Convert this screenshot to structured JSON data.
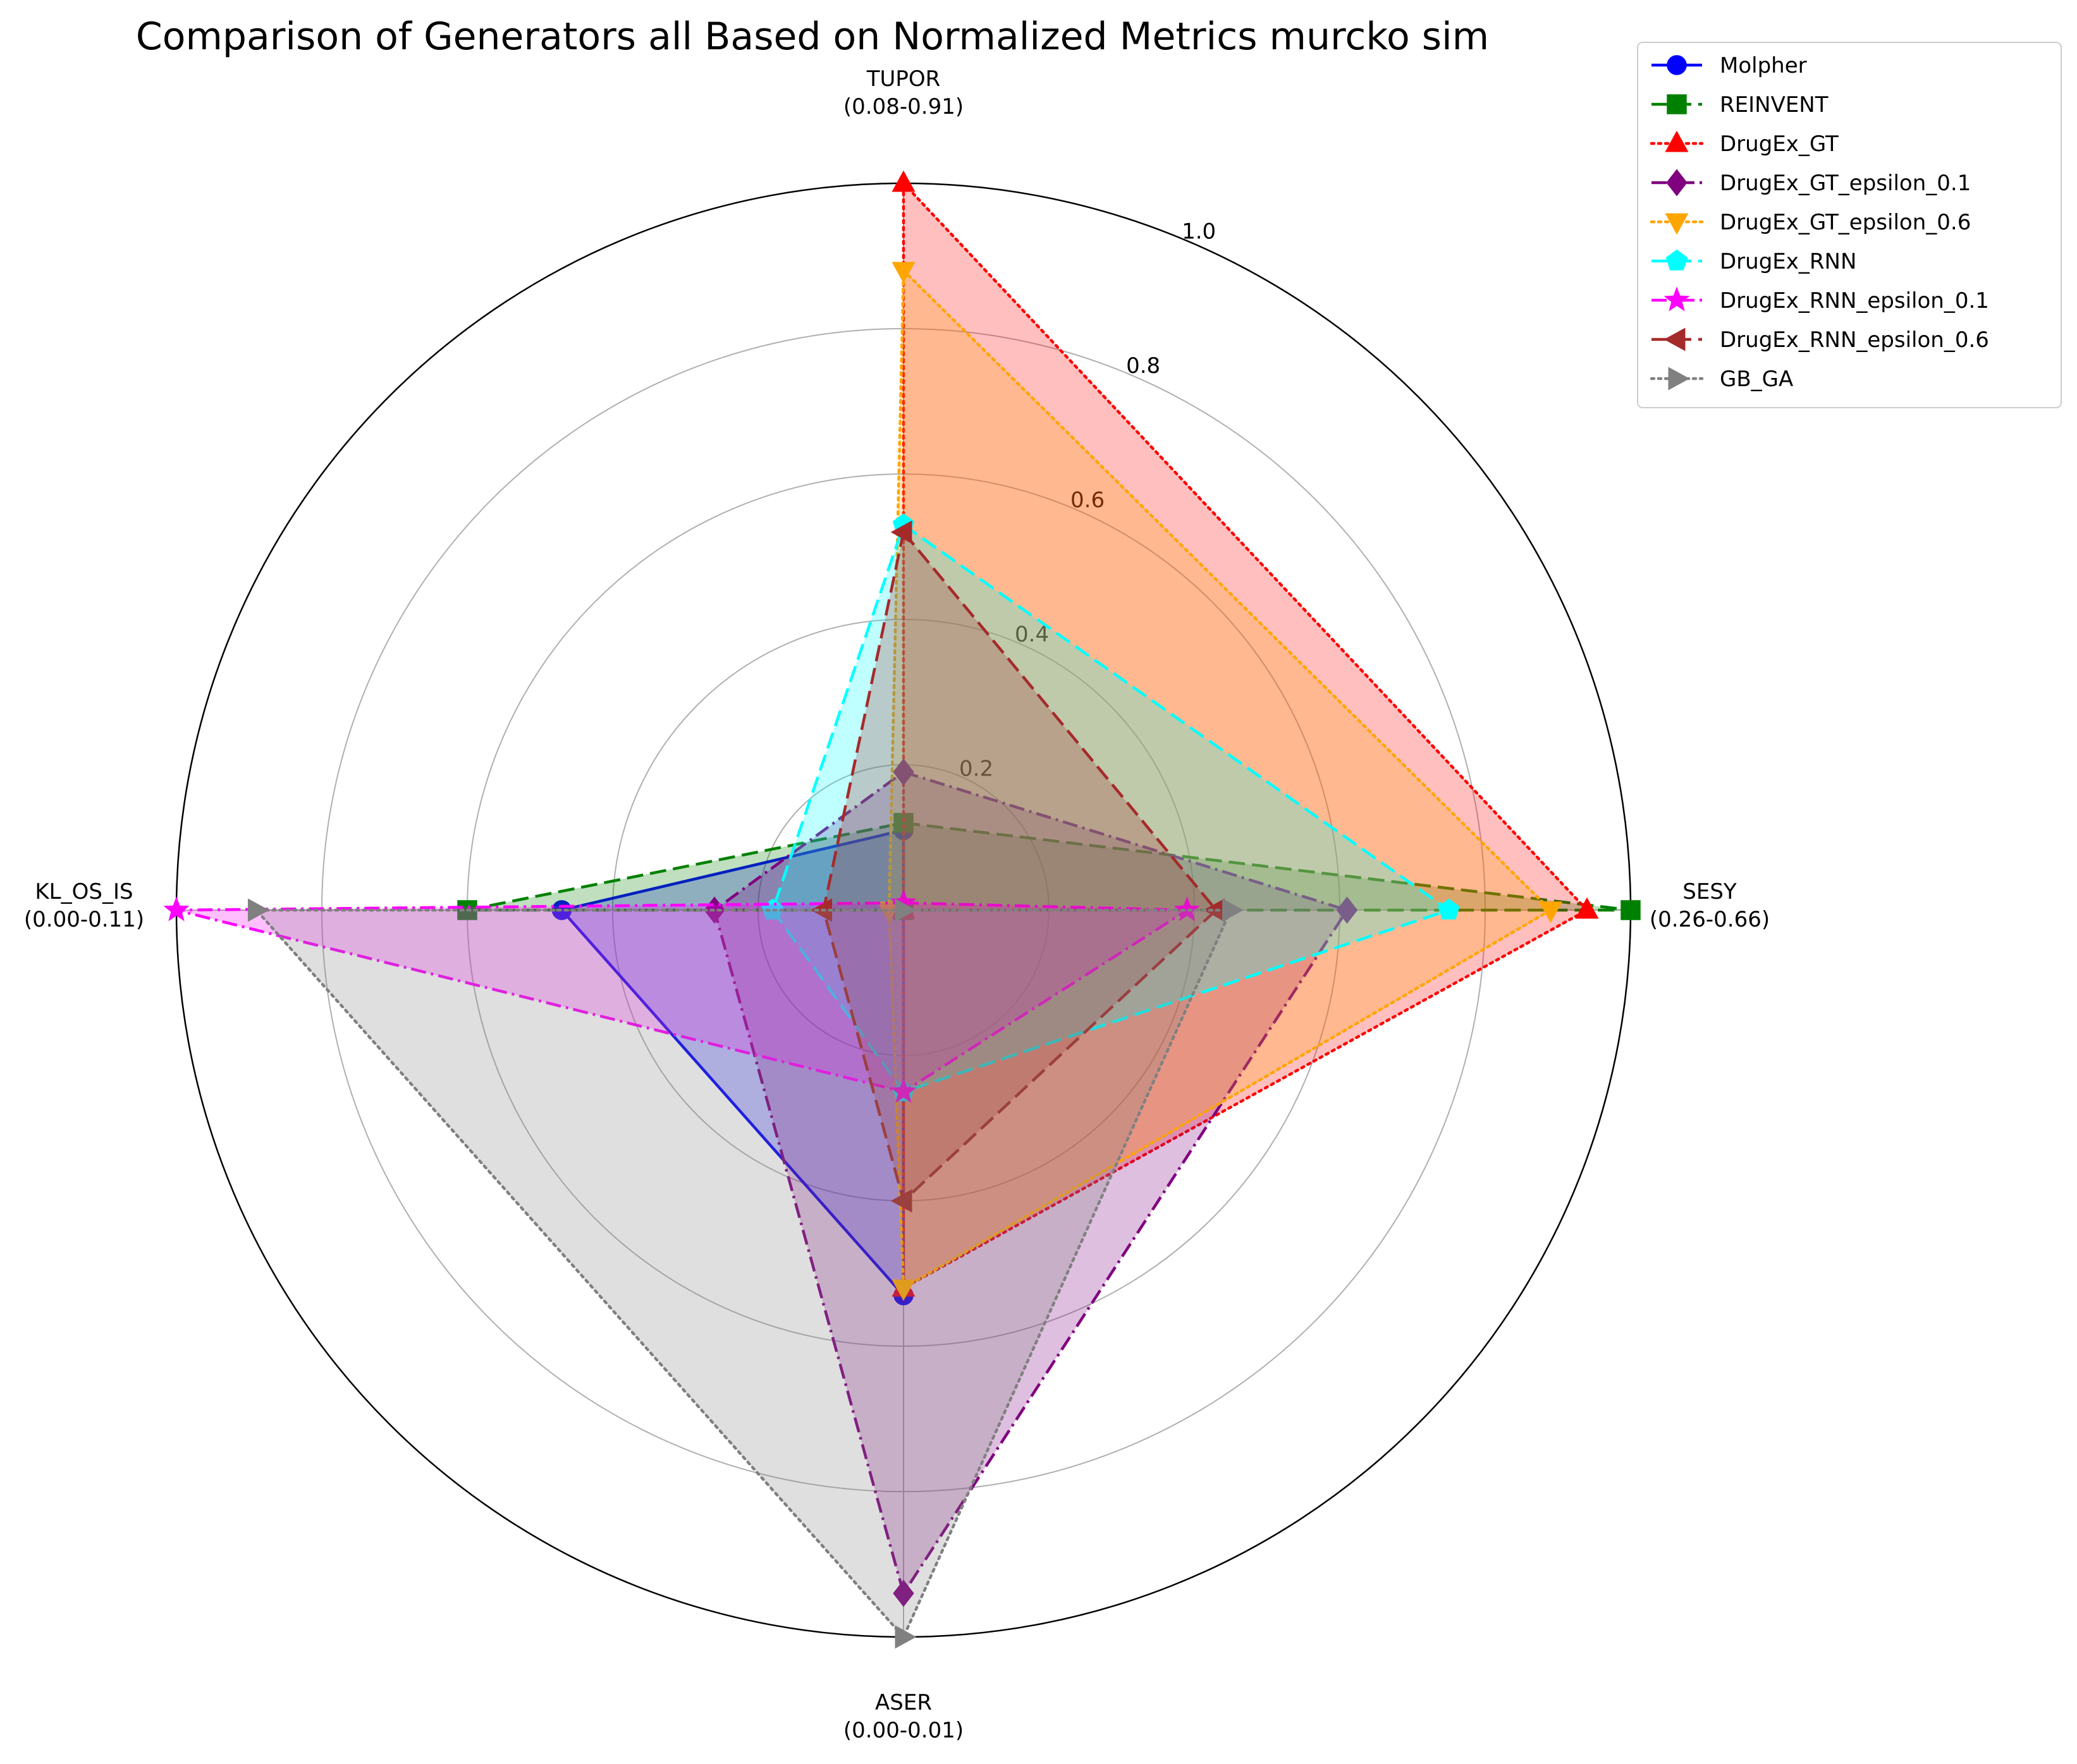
{
  "chart_data": {
    "type": "radar",
    "title": "Comparison of Generators all Based on Normalized Metrics murcko sim",
    "axes": [
      {
        "name": "TUPOR",
        "range_label": "(0.08-0.91)"
      },
      {
        "name": "SESY",
        "range_label": "(0.26-0.66)"
      },
      {
        "name": "ASER",
        "range_label": "(0.00-0.01)"
      },
      {
        "name": "KL_OS_IS",
        "range_label": "(0.00-0.11)"
      }
    ],
    "radial_ticks": [
      "0.2",
      "0.4",
      "0.6",
      "0.8",
      "1.0"
    ],
    "rlim": [
      0,
      1
    ],
    "grid": true,
    "legend_position": "top-right",
    "series": [
      {
        "name": "Molpher",
        "color": "#0000ff",
        "dash": "solid",
        "marker": "circle",
        "fill_opacity": 0.25,
        "values": [
          0.11,
          0.0,
          0.53,
          0.47
        ]
      },
      {
        "name": "REINVENT",
        "color": "#008000",
        "dash": "dashed",
        "marker": "square",
        "fill_opacity": 0.25,
        "values": [
          0.12,
          1.0,
          0.0,
          0.6
        ]
      },
      {
        "name": "DrugEx_GT",
        "color": "#ff0000",
        "dash": "dotted",
        "marker": "triangle-up",
        "fill_opacity": 0.25,
        "values": [
          1.0,
          0.94,
          0.52,
          0.0
        ]
      },
      {
        "name": "DrugEx_GT_epsilon_0.1",
        "color": "#800080",
        "dash": "dashdot",
        "marker": "diamond",
        "fill_opacity": 0.25,
        "values": [
          0.19,
          0.61,
          0.94,
          0.26
        ]
      },
      {
        "name": "DrugEx_GT_epsilon_0.6",
        "color": "#ffa500",
        "dash": "dotted",
        "marker": "triangle-down",
        "fill_opacity": 0.25,
        "values": [
          0.88,
          0.89,
          0.52,
          0.02
        ]
      },
      {
        "name": "DrugEx_RNN",
        "color": "#00ffff",
        "dash": "dashed",
        "marker": "pentagon",
        "fill_opacity": 0.25,
        "values": [
          0.53,
          0.75,
          0.25,
          0.18
        ]
      },
      {
        "name": "DrugEx_RNN_epsilon_0.1",
        "color": "#ff00ff",
        "dash": "dashdot",
        "marker": "star",
        "fill_opacity": 0.25,
        "values": [
          0.01,
          0.39,
          0.25,
          1.0
        ]
      },
      {
        "name": "DrugEx_RNN_epsilon_0.6",
        "color": "#a52a2a",
        "dash": "dashed",
        "marker": "triangle-left",
        "fill_opacity": 0.25,
        "values": [
          0.52,
          0.43,
          0.4,
          0.11
        ]
      },
      {
        "name": "GB_GA",
        "color": "#808080",
        "dash": "dotted",
        "marker": "triangle-right",
        "fill_opacity": 0.25,
        "values": [
          0.0,
          0.45,
          1.0,
          0.89
        ]
      }
    ]
  }
}
